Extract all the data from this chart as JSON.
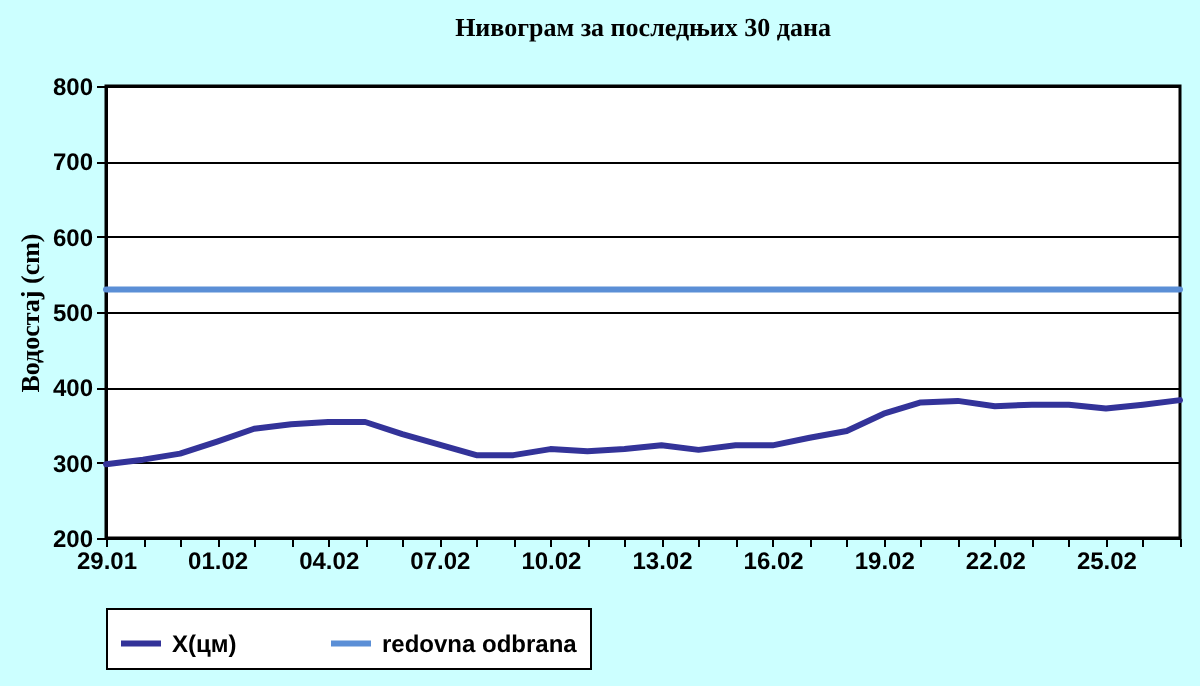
{
  "chart_data": {
    "type": "line",
    "title": "Нивограм за последњих 30 дана",
    "ylabel": "Водостај (cm)",
    "categories": [
      "29.01",
      null,
      null,
      "01.02",
      null,
      null,
      "04.02",
      null,
      null,
      "07.02",
      null,
      null,
      "10.02",
      null,
      null,
      "13.02",
      null,
      null,
      "16.02",
      null,
      null,
      "19.02",
      null,
      null,
      "22.02",
      null,
      null,
      "25.02",
      null,
      null
    ],
    "series": [
      {
        "name": "X(цм)",
        "color": "#333399",
        "values": [
          298,
          304,
          312,
          328,
          345,
          351,
          354,
          354,
          338,
          324,
          310,
          310,
          318,
          315,
          318,
          323,
          317,
          323,
          323,
          333,
          342,
          365,
          380,
          382,
          375,
          377,
          377,
          372,
          377,
          383
        ]
      },
      {
        "name": "redovna odbrana",
        "color": "#5b8fd6",
        "values": [
          530,
          530,
          530,
          530,
          530,
          530,
          530,
          530,
          530,
          530,
          530,
          530,
          530,
          530,
          530,
          530,
          530,
          530,
          530,
          530,
          530,
          530,
          530,
          530,
          530,
          530,
          530,
          530,
          530,
          530
        ]
      }
    ],
    "ylim": [
      200,
      800
    ],
    "yticks": [
      200,
      300,
      400,
      500,
      600,
      700,
      800
    ],
    "grid": "y",
    "legend": "bottom",
    "marker": "none",
    "line_style": "solid"
  }
}
